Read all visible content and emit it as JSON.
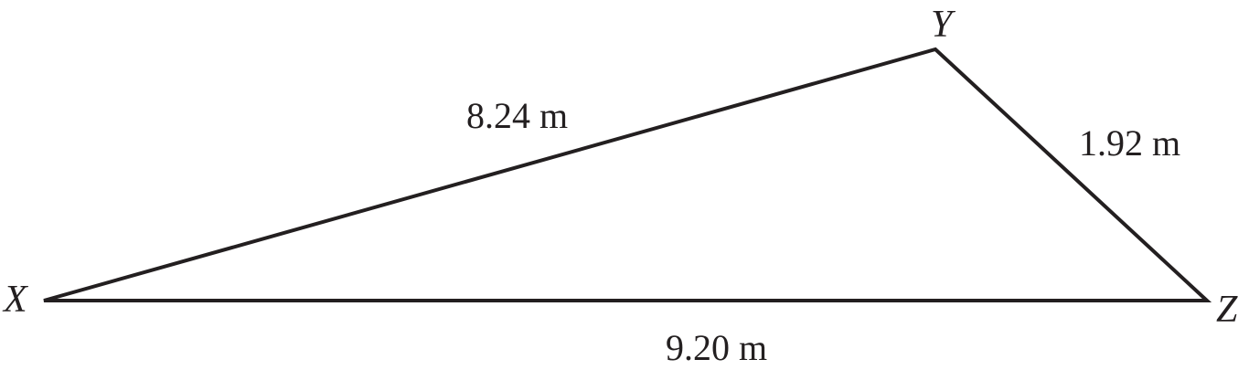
{
  "vertices": {
    "X": "X",
    "Y": "Y",
    "Z": "Z"
  },
  "sides": {
    "XY": "8.24 m",
    "YZ": "1.92 m",
    "XZ": "9.20 m"
  },
  "colors": {
    "stroke": "#231f20",
    "background": "#ffffff"
  }
}
